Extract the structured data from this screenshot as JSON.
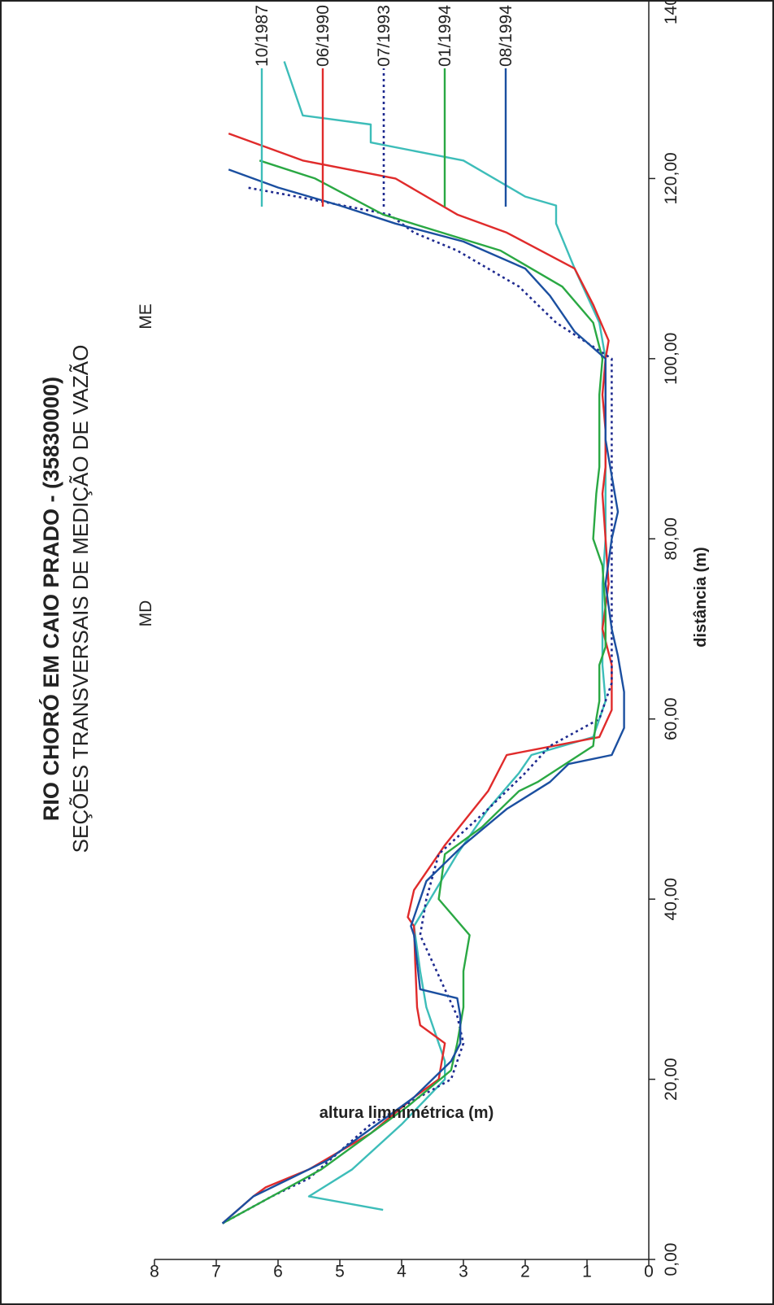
{
  "chart_data": {
    "type": "line",
    "title": "RIO CHORÓ EM CAIO PRADO - (35830000)",
    "subtitle": "SEÇÕES TRANSVERSAIS DE MEDIÇÃO DE VAZÃO",
    "xlabel": "distância (m)",
    "ylabel": "altura limnimétrica (m)",
    "xlim": [
      0,
      140
    ],
    "ylim": [
      0,
      8
    ],
    "x_ticks": [
      "0,00",
      "20,00",
      "40,00",
      "60,00",
      "80,00",
      "100,00",
      "120,00",
      "140,00"
    ],
    "y_ticks": [
      "0",
      "1",
      "2",
      "3",
      "4",
      "5",
      "6",
      "7",
      "8"
    ],
    "annotations": {
      "left_bank": "MD",
      "right_bank": "ME"
    },
    "legend_position": "right",
    "grid": false,
    "series": [
      {
        "name": "10/1987",
        "color": "#3dbdb9",
        "style": "solid",
        "points": [
          [
            5.5,
            4.3
          ],
          [
            7,
            5.5
          ],
          [
            10,
            4.8
          ],
          [
            15,
            4
          ],
          [
            20,
            3.3
          ],
          [
            22,
            3.3
          ],
          [
            24,
            3.4
          ],
          [
            26,
            3.5
          ],
          [
            28,
            3.6
          ],
          [
            32,
            3.7
          ],
          [
            37,
            3.8
          ],
          [
            45,
            3.1
          ],
          [
            50,
            2.6
          ],
          [
            54,
            2.1
          ],
          [
            56,
            1.9
          ],
          [
            58,
            0.9
          ],
          [
            62,
            0.7
          ],
          [
            66,
            0.75
          ],
          [
            70,
            0.75
          ],
          [
            75,
            0.75
          ],
          [
            80,
            0.7
          ],
          [
            85,
            0.7
          ],
          [
            90,
            0.7
          ],
          [
            95,
            0.7
          ],
          [
            100,
            0.7
          ],
          [
            104,
            0.8
          ],
          [
            110,
            1.2
          ],
          [
            115,
            1.5
          ],
          [
            117,
            1.5
          ],
          [
            118,
            2.0
          ],
          [
            122,
            3.0
          ],
          [
            124,
            4.5
          ],
          [
            126,
            4.5
          ],
          [
            127,
            5.6
          ],
          [
            133,
            5.9
          ]
        ]
      },
      {
        "name": "06/1990",
        "color": "#e02b2b",
        "style": "solid",
        "points": [
          [
            4,
            6.9
          ],
          [
            7,
            6.4
          ],
          [
            8,
            6.2
          ],
          [
            10,
            5.5
          ],
          [
            14,
            4.5
          ],
          [
            18,
            3.8
          ],
          [
            20,
            3.4
          ],
          [
            24,
            3.3
          ],
          [
            26,
            3.7
          ],
          [
            28,
            3.75
          ],
          [
            33,
            3.78
          ],
          [
            37,
            3.8
          ],
          [
            38,
            3.9
          ],
          [
            41,
            3.8
          ],
          [
            46,
            3.3
          ],
          [
            52,
            2.6
          ],
          [
            56,
            2.3
          ],
          [
            58,
            0.8
          ],
          [
            61,
            0.6
          ],
          [
            66,
            0.6
          ],
          [
            70,
            0.75
          ],
          [
            75,
            0.65
          ],
          [
            80,
            0.7
          ],
          [
            85,
            0.75
          ],
          [
            88,
            0.7
          ],
          [
            92,
            0.7
          ],
          [
            96,
            0.75
          ],
          [
            100,
            0.7
          ],
          [
            102,
            0.65
          ],
          [
            106,
            0.9
          ],
          [
            110,
            1.2
          ],
          [
            114,
            2.3
          ],
          [
            116,
            3.1
          ],
          [
            120,
            4.1
          ],
          [
            122,
            5.6
          ],
          [
            125,
            6.8
          ]
        ]
      },
      {
        "name": "07/1993",
        "color": "#1e2a8f",
        "style": "dotted",
        "points": [
          [
            4,
            6.9
          ],
          [
            7,
            6.1
          ],
          [
            9,
            5.5
          ],
          [
            12,
            5.0
          ],
          [
            15,
            4.5
          ],
          [
            20,
            3.2
          ],
          [
            24,
            3.0
          ],
          [
            27,
            3.1
          ],
          [
            30,
            3.3
          ],
          [
            33,
            3.5
          ],
          [
            36,
            3.7
          ],
          [
            40,
            3.6
          ],
          [
            45,
            3.4
          ],
          [
            50,
            2.6
          ],
          [
            54,
            2.0
          ],
          [
            57,
            1.6
          ],
          [
            60,
            0.8
          ],
          [
            64,
            0.6
          ],
          [
            68,
            0.6
          ],
          [
            72,
            0.6
          ],
          [
            76,
            0.6
          ],
          [
            80,
            0.6
          ],
          [
            84,
            0.6
          ],
          [
            88,
            0.6
          ],
          [
            92,
            0.6
          ],
          [
            96,
            0.6
          ],
          [
            100,
            0.6
          ],
          [
            104,
            1.5
          ],
          [
            108,
            2.1
          ],
          [
            112,
            3.1
          ],
          [
            114,
            3.8
          ],
          [
            116,
            4.2
          ],
          [
            118,
            5.7
          ],
          [
            119,
            6.5
          ]
        ]
      },
      {
        "name": "01/1994",
        "color": "#2aa843",
        "style": "solid",
        "points": [
          [
            4,
            6.9
          ],
          [
            7,
            6.1
          ],
          [
            10,
            5.3
          ],
          [
            13,
            4.7
          ],
          [
            17,
            3.9
          ],
          [
            21,
            3.2
          ],
          [
            24,
            3.1
          ],
          [
            28,
            3.0
          ],
          [
            32,
            3.0
          ],
          [
            36,
            2.9
          ],
          [
            40,
            3.4
          ],
          [
            45,
            3.3
          ],
          [
            48,
            2.7
          ],
          [
            52,
            2.1
          ],
          [
            53,
            1.8
          ],
          [
            57,
            0.9
          ],
          [
            60,
            0.85
          ],
          [
            62,
            0.8
          ],
          [
            66,
            0.8
          ],
          [
            68,
            0.7
          ],
          [
            72,
            0.7
          ],
          [
            77,
            0.75
          ],
          [
            80,
            0.9
          ],
          [
            85,
            0.85
          ],
          [
            88,
            0.8
          ],
          [
            92,
            0.8
          ],
          [
            96,
            0.8
          ],
          [
            100,
            0.75
          ],
          [
            104,
            0.9
          ],
          [
            108,
            1.4
          ],
          [
            112,
            2.4
          ],
          [
            116,
            4.3
          ],
          [
            120,
            5.4
          ],
          [
            122,
            6.3
          ]
        ]
      },
      {
        "name": "08/1994",
        "color": "#1b4fa0",
        "style": "solid",
        "points": [
          [
            4,
            6.9
          ],
          [
            7,
            6.4
          ],
          [
            9,
            5.8
          ],
          [
            11,
            5.2
          ],
          [
            14,
            4.6
          ],
          [
            18,
            3.8
          ],
          [
            22,
            3.2
          ],
          [
            24,
            3.05
          ],
          [
            27,
            3.05
          ],
          [
            29,
            3.1
          ],
          [
            30,
            3.7
          ],
          [
            33,
            3.75
          ],
          [
            36,
            3.8
          ],
          [
            37,
            3.85
          ],
          [
            42,
            3.6
          ],
          [
            46,
            3.0
          ],
          [
            50,
            2.3
          ],
          [
            53,
            1.6
          ],
          [
            55,
            1.3
          ],
          [
            56,
            0.6
          ],
          [
            59,
            0.4
          ],
          [
            63,
            0.4
          ],
          [
            67,
            0.5
          ],
          [
            70,
            0.6
          ],
          [
            75,
            0.7
          ],
          [
            80,
            0.6
          ],
          [
            83,
            0.5
          ],
          [
            87,
            0.6
          ],
          [
            91,
            0.7
          ],
          [
            96,
            0.7
          ],
          [
            100,
            0.7
          ],
          [
            103,
            1.2
          ],
          [
            107,
            1.6
          ],
          [
            110,
            2.0
          ],
          [
            113,
            3.0
          ],
          [
            115,
            4.1
          ],
          [
            117,
            5.0
          ],
          [
            119,
            6.0
          ],
          [
            121,
            6.8
          ]
        ]
      }
    ]
  }
}
